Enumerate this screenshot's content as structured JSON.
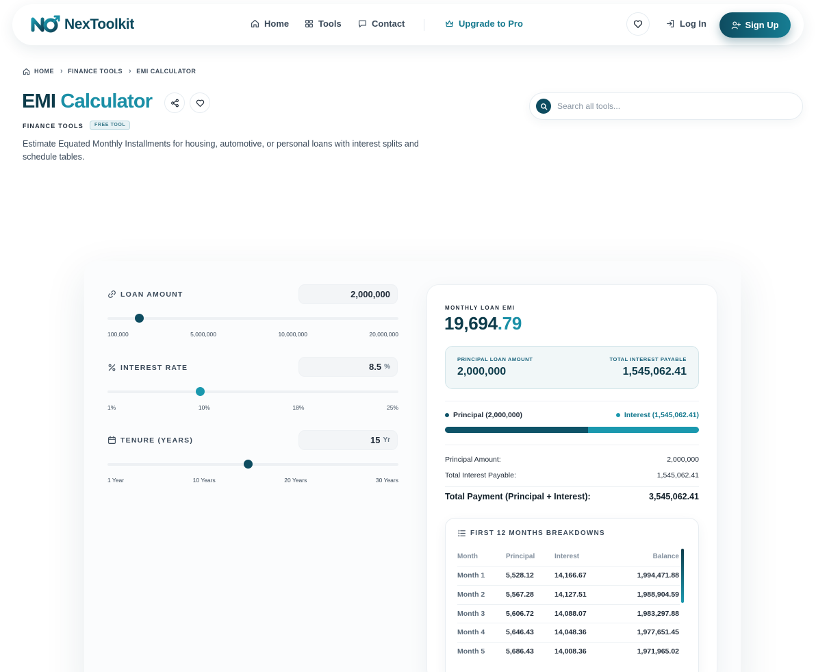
{
  "nav": {
    "logo_text_main": "Nex",
    "logo_text_accent": "Toolkit",
    "links": [
      {
        "label": "Home",
        "icon": "home-icon"
      },
      {
        "label": "Tools",
        "icon": "grid-icon"
      },
      {
        "label": "Contact",
        "icon": "chat-icon"
      }
    ],
    "pro_label": "Upgrade to Pro",
    "login_label": "Log In",
    "signup_label": "Sign Up"
  },
  "breadcrumb": [
    "HOME",
    "FINANCE TOOLS",
    "EMI CALCULATOR"
  ],
  "page": {
    "title_main": "EMI ",
    "title_accent": "Calculator",
    "category": "FINANCE TOOLS",
    "badge": "FREE TOOL",
    "description": "Estimate Equated Monthly Installments for housing, automotive, or personal loans with interest splits and schedule tables."
  },
  "search": {
    "placeholder": "Search all tools..."
  },
  "inputs": {
    "loan_amount": {
      "label": "LOAN AMOUNT",
      "value": "2,000,000",
      "ticks": [
        "100,000",
        "5,000,000",
        "10,000,000",
        "20,000,000"
      ],
      "slider_fraction": 0.108
    },
    "interest_rate": {
      "label": "INTEREST RATE",
      "value": "8.5",
      "unit": "%",
      "ticks": [
        "1%",
        "10%",
        "18%",
        "25%"
      ],
      "slider_fraction": 0.318
    },
    "tenure": {
      "label": "TENURE (YEARS)",
      "value": "15",
      "unit": "Yr",
      "ticks": [
        "1 Year",
        "10 Years",
        "20 Years",
        "30 Years"
      ],
      "slider_fraction": 0.483
    }
  },
  "result": {
    "emi_label": "MONTHLY LOAN EMI",
    "emi_int": "19,694",
    "emi_dec": ".79",
    "principal_label": "PRINCIPAL LOAN AMOUNT",
    "principal_value": "2,000,000",
    "interest_label": "TOTAL INTEREST PAYABLE",
    "interest_value": "1,545,062.41",
    "legend_principal": "Principal (2,000,000)",
    "legend_interest": "Interest (1,545,062.41)",
    "principal_share": 0.564,
    "rows": [
      {
        "label": "Principal Amount:",
        "value": "2,000,000"
      },
      {
        "label": "Total Interest Payable:",
        "value": "1,545,062.41"
      }
    ],
    "total_label": "Total Payment (Principal + Interest):",
    "total_value": "3,545,062.41"
  },
  "breakdown": {
    "title": "FIRST 12 MONTHS BREAKDOWNS",
    "headers": [
      "Month",
      "Principal",
      "Interest",
      "Balance"
    ],
    "rows": [
      [
        "Month 1",
        "5,528.12",
        "14,166.67",
        "1,994,471.88"
      ],
      [
        "Month 2",
        "5,567.28",
        "14,127.51",
        "1,988,904.59"
      ],
      [
        "Month 3",
        "5,606.72",
        "14,088.07",
        "1,983,297.88"
      ],
      [
        "Month 4",
        "5,646.43",
        "14,048.36",
        "1,977,651.45"
      ],
      [
        "Month 5",
        "5,686.43",
        "14,008.36",
        "1,971,965.02"
      ]
    ]
  },
  "colors": {
    "brand_dark": "#0e4c60",
    "brand_accent": "#1a8fa6",
    "principal": "#0e5368",
    "interest": "#1a98ae"
  }
}
